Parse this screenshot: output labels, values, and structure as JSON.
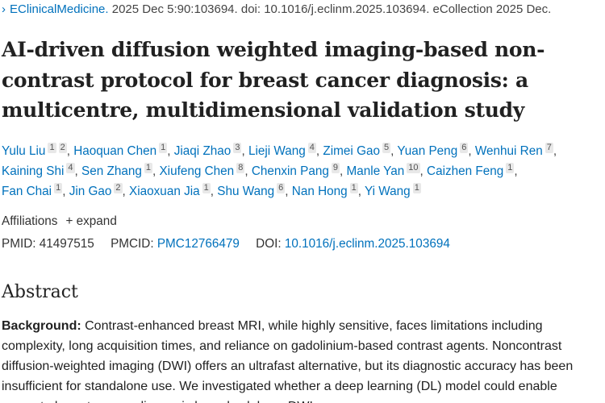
{
  "citation": {
    "journal": "EClinicalMedicine.",
    "rest": "2025 Dec 5:90:103694. doi: 10.1016/j.eclinm.2025.103694. eCollection 2025 Dec."
  },
  "title": "AI-driven diffusion weighted imaging-based non-contrast protocol for breast cancer diagnosis: a multicentre, multidimensional validation study",
  "authors": [
    {
      "name": "Yulu Liu",
      "aff": "1 2"
    },
    {
      "name": "Haoquan Chen",
      "aff": "1"
    },
    {
      "name": "Jiaqi Zhao",
      "aff": "3"
    },
    {
      "name": "Lieji Wang",
      "aff": "4"
    },
    {
      "name": "Zimei Gao",
      "aff": "5"
    },
    {
      "name": "Yuan Peng",
      "aff": "6"
    },
    {
      "name": "Wenhui Ren",
      "aff": "7"
    },
    {
      "name": "Kaining Shi",
      "aff": "4"
    },
    {
      "name": "Sen Zhang",
      "aff": "1"
    },
    {
      "name": "Xiufeng Chen",
      "aff": "8"
    },
    {
      "name": "Chenxin Pang",
      "aff": "9"
    },
    {
      "name": "Manle Yan",
      "aff": "10"
    },
    {
      "name": "Caizhen Feng",
      "aff": "1"
    },
    {
      "name": "Fan Chai",
      "aff": "1"
    },
    {
      "name": "Jin Gao",
      "aff": "2"
    },
    {
      "name": "Xiaoxuan Jia",
      "aff": "1"
    },
    {
      "name": "Shu Wang",
      "aff": "6"
    },
    {
      "name": "Nan Hong",
      "aff": "1"
    },
    {
      "name": "Yi Wang",
      "aff": "1"
    }
  ],
  "affiliations": {
    "label": "Affiliations",
    "expand": "+ expand"
  },
  "ids": {
    "pmid_label": "PMID:",
    "pmid": "41497515",
    "pmcid_label": "PMCID:",
    "pmcid": "PMC12766479",
    "doi_label": "DOI:",
    "doi": "10.1016/j.eclinm.2025.103694"
  },
  "abstract": {
    "heading": "Abstract",
    "background_label": "Background:",
    "background_text": " Contrast-enhanced breast MRI, while highly sensitive, faces limitations including complexity, long acquisition times, and reliance on gadolinium-based contrast agents. Noncontrast diffusion-weighted imaging (DWI) offers an ultrafast alternative, but its diagnostic accuracy has been insufficient for standalone use. We investigated whether a deep learning (DL) model could enable accurate breast cancer diagnosis based solely on DWI."
  },
  "colors": {
    "link": "#0071bc",
    "text": "#212121"
  }
}
